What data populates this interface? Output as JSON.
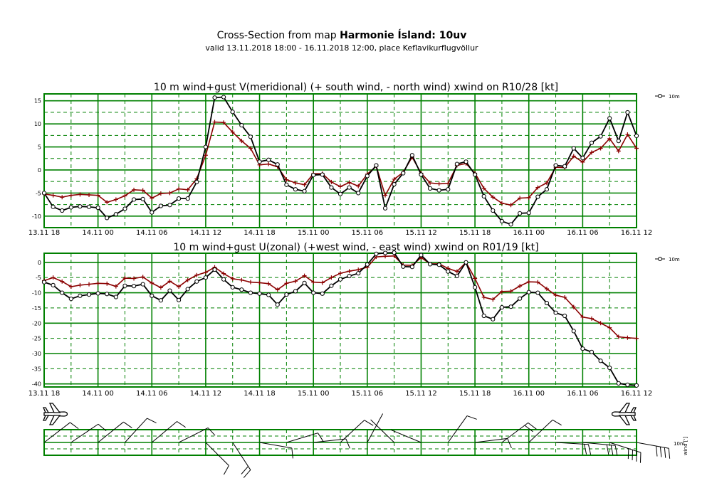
{
  "header": {
    "title_prefix": "Cross-Section from map ",
    "title_bold": "Harmonie Ísland: 10uv",
    "subtitle": "valid 13.11.2018 18:00 - 16.11.2018 12:00, place Keflavikurflugvöllur"
  },
  "x_ticks": [
    "13.11 18",
    "14.11 00",
    "14.11 06",
    "14.11 12",
    "14.11 18",
    "15.11 00",
    "15.11 06",
    "15.11 12",
    "15.11 18",
    "16.11 00",
    "16.11 06",
    "16.11 12"
  ],
  "bottom_panel": {
    "ylabel_line1": "10m",
    "ylabel_line2": "wind [']"
  },
  "colors": {
    "grid": "#008000",
    "gust": "#000000",
    "wind": "#8b0000"
  },
  "chart_data": [
    {
      "type": "line",
      "title": "10 m wind+gust V(meridional) (+ south wind, - north wind) xwind on R10/28 [kt]",
      "x_hours": [
        0,
        1,
        2,
        3,
        4,
        5,
        6,
        7,
        8,
        9,
        10,
        11,
        12,
        13,
        14,
        15,
        16,
        17,
        18,
        19,
        20,
        21,
        22,
        23,
        24,
        25,
        26,
        27,
        28,
        29,
        30,
        31,
        32,
        33,
        34,
        35,
        36,
        37,
        38,
        39,
        40,
        41,
        42,
        43,
        44,
        45,
        46,
        47,
        48,
        49,
        50,
        51,
        52,
        53,
        54,
        55,
        56,
        57,
        58,
        59,
        60,
        61,
        62,
        63,
        64,
        65,
        66
      ],
      "ylim": [
        -12.5,
        16.5
      ],
      "yticks": [
        15,
        10,
        5,
        0,
        -5,
        -10
      ],
      "legend": "10m",
      "legend_position": "right",
      "series": [
        {
          "name": "gust",
          "values": [
            -5.0,
            -8.0,
            -8.8,
            -8.1,
            -7.9,
            -8.0,
            -8.2,
            -10.4,
            -9.6,
            -8.4,
            -6.4,
            -6.3,
            -9.2,
            -7.8,
            -7.6,
            -6.2,
            -6.2,
            -2.6,
            5.0,
            15.7,
            15.8,
            12.6,
            9.7,
            7.2,
            1.8,
            2.2,
            1.2,
            -3.2,
            -4.2,
            -4.6,
            -1.1,
            -1.0,
            -3.8,
            -5.2,
            -3.8,
            -5.0,
            -1.3,
            1.0,
            -8.3,
            -3.1,
            -0.7,
            3.2,
            -1.0,
            -4.0,
            -4.4,
            -4.2,
            1.3,
            1.8,
            -1.0,
            -5.7,
            -8.8,
            -11.1,
            -11.8,
            -9.4,
            -9.3,
            -5.8,
            -4.2,
            1.0,
            0.8,
            4.7,
            2.6,
            5.9,
            7.3,
            11.2,
            6.3,
            12.5,
            7.4
          ]
        },
        {
          "name": "wind",
          "values": [
            -5.2,
            -5.5,
            -5.9,
            -5.5,
            -5.3,
            -5.4,
            -5.5,
            -7.0,
            -6.4,
            -5.6,
            -4.3,
            -4.4,
            -6.1,
            -5.1,
            -5.0,
            -4.1,
            -4.3,
            -1.9,
            3.2,
            10.4,
            10.3,
            8.2,
            6.3,
            4.7,
            1.1,
            1.3,
            0.7,
            -2.1,
            -2.8,
            -3.2,
            -0.8,
            -0.8,
            -2.6,
            -3.6,
            -2.7,
            -3.5,
            -0.9,
            0.8,
            -5.5,
            -2.0,
            -0.5,
            2.8,
            -0.7,
            -2.8,
            -3.0,
            -2.9,
            1.0,
            1.4,
            -0.7,
            -4.0,
            -5.9,
            -7.2,
            -7.6,
            -6.1,
            -6.0,
            -3.8,
            -2.8,
            0.6,
            0.5,
            3.0,
            1.7,
            3.8,
            4.7,
            6.8,
            4.1,
            7.7,
            4.7
          ]
        }
      ]
    },
    {
      "type": "line",
      "title": "10 m wind+gust U(zonal) (+west wind, - east wind) xwind on R01/19 [kt]",
      "x_hours": [
        0,
        1,
        2,
        3,
        4,
        5,
        6,
        7,
        8,
        9,
        10,
        11,
        12,
        13,
        14,
        15,
        16,
        17,
        18,
        19,
        20,
        21,
        22,
        23,
        24,
        25,
        26,
        27,
        28,
        29,
        30,
        31,
        32,
        33,
        34,
        35,
        36,
        37,
        38,
        39,
        40,
        41,
        42,
        43,
        44,
        45,
        46,
        47,
        48,
        49,
        50,
        51,
        52,
        53,
        54,
        55,
        56,
        57,
        58,
        59,
        60,
        61,
        62,
        63,
        64,
        65,
        66
      ],
      "ylim": [
        -41,
        3
      ],
      "yticks": [
        0,
        -5,
        -10,
        -15,
        -20,
        -25,
        -30,
        -35,
        -40
      ],
      "legend": "10m",
      "legend_position": "right",
      "series": [
        {
          "name": "gust",
          "values": [
            -6.5,
            -7.5,
            -10.0,
            -12.0,
            -11.0,
            -10.6,
            -10.2,
            -10.4,
            -11.4,
            -7.7,
            -7.8,
            -7.2,
            -11.0,
            -12.5,
            -9.3,
            -12.4,
            -8.8,
            -6.3,
            -5.0,
            -2.4,
            -5.6,
            -8.2,
            -9.0,
            -10.0,
            -10.3,
            -10.7,
            -13.9,
            -10.6,
            -9.5,
            -6.8,
            -10.0,
            -10.3,
            -7.7,
            -5.6,
            -4.5,
            -3.6,
            -0.7,
            2.8,
            3.1,
            3.2,
            -1.4,
            -1.5,
            2.4,
            -0.6,
            -0.8,
            -3.0,
            -4.5,
            0.0,
            -8.2,
            -17.6,
            -18.7,
            -14.8,
            -14.6,
            -11.9,
            -9.8,
            -10.0,
            -13.4,
            -16.6,
            -17.6,
            -22.6,
            -28.4,
            -29.5,
            -32.4,
            -34.7,
            -39.8,
            -40.3,
            -40.5
          ]
        },
        {
          "name": "wind",
          "values": [
            -6.0,
            -5.0,
            -6.3,
            -8.0,
            -7.5,
            -7.2,
            -6.9,
            -7.0,
            -7.9,
            -5.2,
            -5.3,
            -4.8,
            -6.8,
            -8.3,
            -6.2,
            -8.0,
            -5.8,
            -4.2,
            -3.3,
            -1.6,
            -3.7,
            -5.4,
            -5.8,
            -6.5,
            -6.7,
            -7.0,
            -9.0,
            -6.9,
            -6.2,
            -4.4,
            -6.5,
            -6.7,
            -5.0,
            -3.6,
            -2.9,
            -2.4,
            -1.6,
            1.8,
            2.0,
            2.1,
            -0.9,
            -1.0,
            1.6,
            -0.5,
            -0.5,
            -2.0,
            -3.0,
            0.0,
            -5.3,
            -11.5,
            -12.2,
            -9.6,
            -9.5,
            -7.8,
            -6.4,
            -6.5,
            -8.7,
            -10.8,
            -11.5,
            -14.7,
            -18.0,
            -18.5,
            -20.0,
            -21.5,
            -24.5,
            -24.8,
            -25.0
          ]
        }
      ]
    }
  ],
  "barbs": {
    "level": "10m",
    "u": [
      -6.5,
      -7.5,
      -10.0,
      -12.0,
      -11.0,
      -10.6,
      -10.2,
      -10.4,
      -11.4,
      -7.7,
      -7.8,
      -7.2,
      -11.0,
      -12.5,
      -9.3,
      -12.4,
      -8.8,
      -6.3,
      -5.0,
      -2.4,
      -5.6,
      -8.2,
      -9.0,
      -10.0,
      -10.3,
      -10.7,
      -13.9,
      -10.6,
      -9.5,
      -6.8,
      -10.0,
      -10.3,
      -7.7,
      -5.6,
      -4.5,
      -3.6,
      -0.7,
      2.8,
      3.1,
      3.2,
      -1.4,
      -1.5,
      2.4,
      -0.6,
      -0.8,
      -3.0,
      -4.5,
      0.0,
      -8.2,
      -17.6,
      -18.7,
      -14.8,
      -14.6,
      -11.9,
      -9.8,
      -10.0,
      -13.4,
      -16.6,
      -17.6,
      -22.6,
      -28.4,
      -29.5,
      -32.4,
      -34.7,
      -39.8,
      -40.3,
      -40.5
    ],
    "v": [
      -5.0,
      -8.0,
      -8.8,
      -8.1,
      -7.9,
      -8.0,
      -8.2,
      -10.4,
      -9.6,
      -8.4,
      -6.4,
      -6.3,
      -9.2,
      -7.8,
      -7.6,
      -6.2,
      -6.2,
      -2.6,
      5.0,
      15.7,
      15.8,
      12.6,
      9.7,
      7.2,
      1.8,
      2.2,
      1.2,
      -3.2,
      -4.2,
      -4.6,
      -1.1,
      -1.0,
      -3.8,
      -5.2,
      -3.8,
      -5.0,
      -1.3,
      1.0,
      -8.3,
      -3.1,
      -0.7,
      3.2,
      -1.0,
      -4.0,
      -4.4,
      -4.2,
      1.3,
      1.8,
      -1.0,
      -5.7,
      -8.8,
      -11.1,
      -11.8,
      -9.4,
      -9.3,
      -5.8,
      -4.2,
      1.0,
      0.8,
      4.7,
      2.6,
      5.9,
      7.3,
      11.2,
      6.3,
      12.5,
      7.4
    ]
  }
}
